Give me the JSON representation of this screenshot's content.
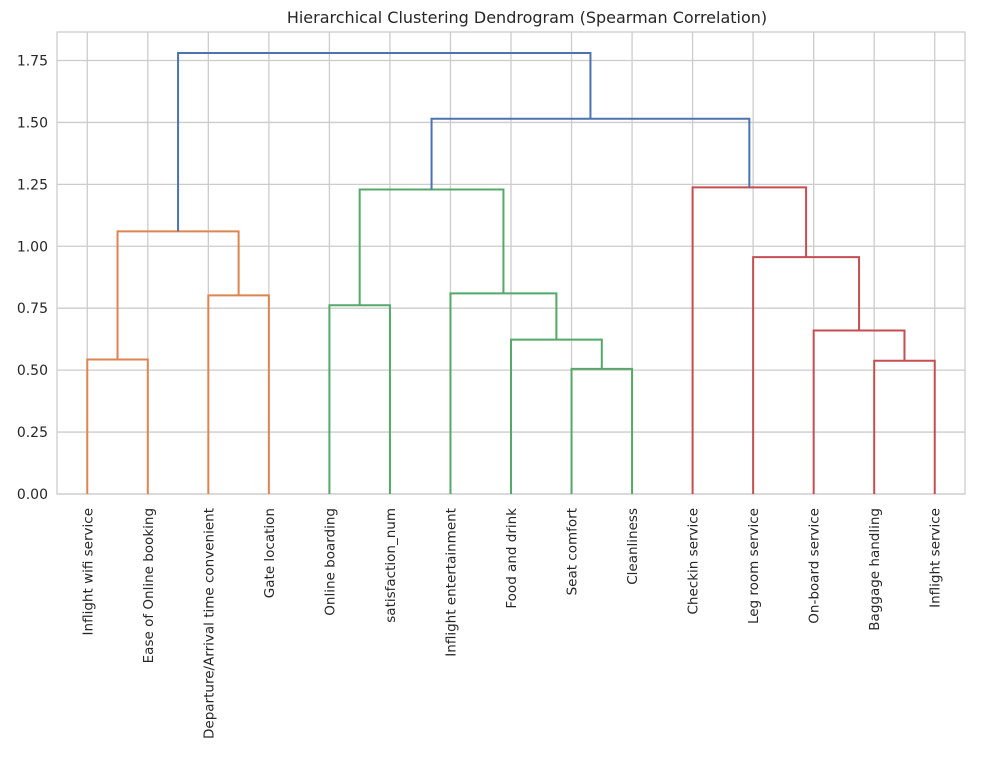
{
  "chart_data": {
    "type": "dendrogram",
    "title": "Hierarchical Clustering Dendrogram (Spearman Correlation)",
    "xlabel": "",
    "ylabel": "",
    "ylim": [
      0,
      1.865
    ],
    "yticks": [
      0.0,
      0.25,
      0.5,
      0.75,
      1.0,
      1.25,
      1.5,
      1.75
    ],
    "ytick_labels": [
      "0.00",
      "0.25",
      "0.50",
      "0.75",
      "1.00",
      "1.25",
      "1.50",
      "1.75"
    ],
    "grid": true,
    "leaves": [
      "Inflight wifi service",
      "Ease of Online booking",
      "Departure/Arrival time convenient",
      "Gate location",
      "Online boarding",
      "satisfaction_num",
      "Inflight entertainment",
      "Food and drink",
      "Seat comfort",
      "Cleanliness",
      "Checkin service",
      "Leg room service",
      "On-board service",
      "Baggage handling",
      "Inflight service"
    ],
    "colors": {
      "cluster_1": "#dd8452",
      "cluster_2": "#55a868",
      "cluster_3": "#c44e52",
      "above_threshold": "#4c72b0",
      "grid": "#cccccc",
      "text": "#262626"
    },
    "merges": [
      {
        "left": "leaf:0",
        "right": "leaf:1",
        "height": 0.543,
        "color": "cluster_1"
      },
      {
        "left": "leaf:2",
        "right": "leaf:3",
        "height": 0.802,
        "color": "cluster_1"
      },
      {
        "left": "node:0",
        "right": "node:1",
        "height": 1.06,
        "color": "cluster_1"
      },
      {
        "left": "leaf:4",
        "right": "leaf:5",
        "height": 0.762,
        "color": "cluster_2"
      },
      {
        "left": "leaf:8",
        "right": "leaf:9",
        "height": 0.505,
        "color": "cluster_2"
      },
      {
        "left": "leaf:7",
        "right": "node:4",
        "height": 0.623,
        "color": "cluster_2"
      },
      {
        "left": "leaf:6",
        "right": "node:5",
        "height": 0.81,
        "color": "cluster_2"
      },
      {
        "left": "node:3",
        "right": "node:6",
        "height": 1.229,
        "color": "cluster_2"
      },
      {
        "left": "leaf:13",
        "right": "leaf:14",
        "height": 0.538,
        "color": "cluster_3"
      },
      {
        "left": "leaf:12",
        "right": "node:8",
        "height": 0.66,
        "color": "cluster_3"
      },
      {
        "left": "leaf:11",
        "right": "node:9",
        "height": 0.956,
        "color": "cluster_3"
      },
      {
        "left": "leaf:10",
        "right": "node:10",
        "height": 1.238,
        "color": "cluster_3"
      },
      {
        "left": "node:7",
        "right": "node:11",
        "height": 1.515,
        "color": "above_threshold"
      },
      {
        "left": "node:2",
        "right": "node:12",
        "height": 1.78,
        "color": "above_threshold"
      }
    ]
  }
}
